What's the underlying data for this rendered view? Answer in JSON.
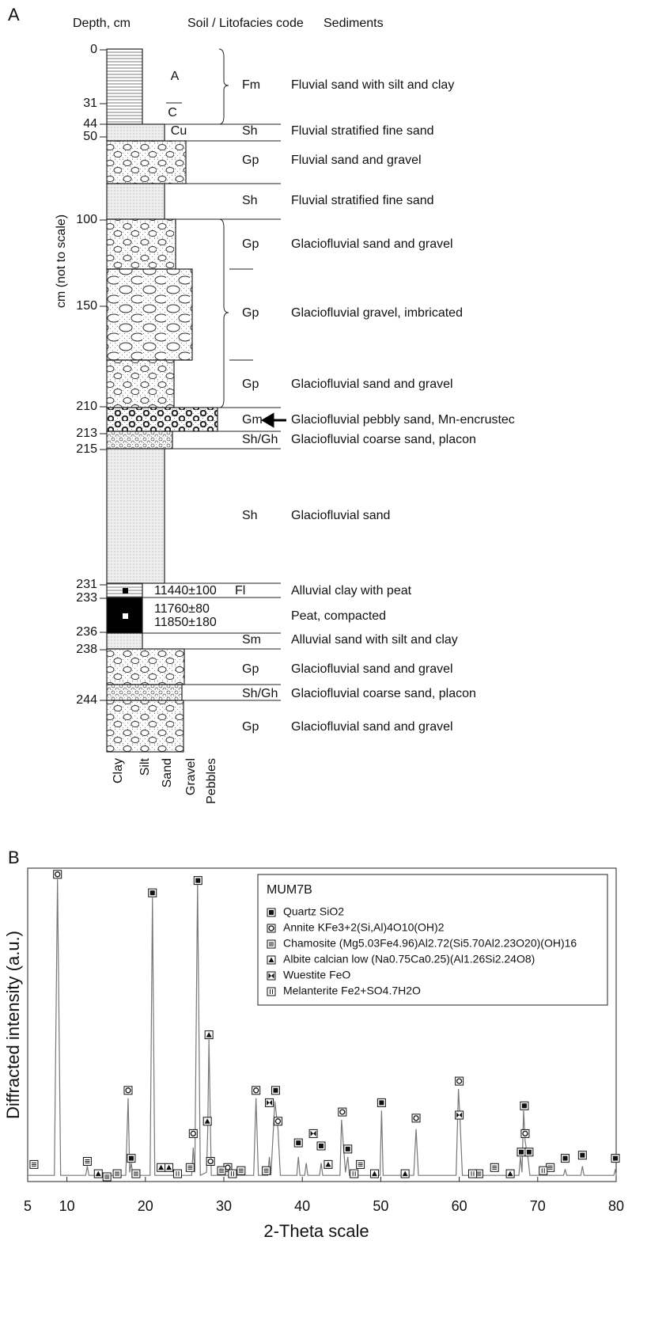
{
  "panel_a": {
    "label": "A",
    "headers": [
      "Depth, cm",
      "Soil / Litofacies code",
      "Sediments"
    ],
    "axis_label": "cm (not to scale)",
    "depths": [
      "0",
      "31",
      "44",
      "50",
      "100",
      "150",
      "210",
      "213",
      "215",
      "231",
      "233",
      "236",
      "238",
      "244"
    ],
    "horizons": [
      "A",
      "C",
      "Cu"
    ],
    "dates": [
      "11440±100",
      "11760±80",
      "11850±180"
    ],
    "units": [
      {
        "code": "Fm",
        "sediment": "Fluvial sand with silt and clay"
      },
      {
        "code": "Sh",
        "sediment": "Fluvial stratified fine sand"
      },
      {
        "code": "Gp",
        "sediment": "Fluvial sand and gravel"
      },
      {
        "code": "Sh",
        "sediment": "Fluvial stratified fine sand"
      },
      {
        "code": "Gp",
        "sediment": "Glaciofluvial sand and gravel"
      },
      {
        "code": "Gp",
        "sediment": "Glaciofluvial gravel, imbricated"
      },
      {
        "code": "Gp",
        "sediment": "Glaciofluvial sand and gravel"
      },
      {
        "code": "Gm",
        "sediment": "Glaciofluvial pebbly sand, Mn-encrustec"
      },
      {
        "code": "Sh/Gh",
        "sediment": "Glaciofluvial coarse sand, placon"
      },
      {
        "code": "Sh",
        "sediment": "Glaciofluvial sand"
      },
      {
        "code": "Fl",
        "sediment": "Alluvial clay with peat"
      },
      {
        "code": null,
        "sediment": "Peat, compacted"
      },
      {
        "code": "Sm",
        "sediment": "Alluvial sand with silt and clay"
      },
      {
        "code": "Gp",
        "sediment": "Glaciofluvial sand and gravel"
      },
      {
        "code": "Sh/Gh",
        "sediment": "Glaciofluvial coarse sand, placon"
      },
      {
        "code": "Gp",
        "sediment": "Glaciofluvial sand and gravel"
      }
    ],
    "grain_sizes": [
      "Clay",
      "Silt",
      "Sand",
      "Gravel",
      "Pebbles"
    ]
  },
  "panel_b_label": "B",
  "chart_data": {
    "type": "line",
    "x_label": "2-Theta scale",
    "y_label": "Diffracted intensity (a.u.)",
    "legend_title": "MUM7B",
    "xlim": [
      5,
      80
    ],
    "xticks": [
      5,
      10,
      20,
      30,
      40,
      50,
      60,
      70,
      80
    ],
    "ylim": [
      0,
      100
    ],
    "color": "#777777",
    "x": [
      5,
      8.4,
      8.8,
      9.2,
      12.4,
      12.6,
      12.8,
      17.5,
      17.8,
      18.0,
      18.2,
      18.4,
      20.6,
      20.9,
      21.2,
      25.9,
      26.1,
      26.3,
      26.65,
      27.0,
      27.8,
      27.95,
      28.1,
      28.4,
      33.8,
      34.1,
      34.4,
      35.6,
      35.8,
      36.0,
      36.5,
      36.9,
      37.2,
      39.3,
      39.5,
      39.7,
      40.3,
      40.5,
      40.7,
      42.2,
      42.4,
      42.6,
      44.8,
      45.0,
      45.5,
      45.8,
      46.0,
      49.9,
      50.1,
      50.3,
      54.2,
      54.5,
      54.8,
      59.6,
      59.9,
      60.1,
      60.4,
      67.6,
      67.8,
      68.0,
      68.2,
      68.4,
      68.8,
      69.0,
      73.3,
      73.5,
      73.7,
      75.5,
      75.7,
      75.9,
      79.7,
      79.9,
      80
    ],
    "values": [
      2,
      2,
      98,
      2,
      2,
      5,
      2,
      2,
      27,
      3,
      6,
      2,
      2,
      92,
      2,
      2,
      11,
      3,
      97,
      2,
      3,
      17,
      46,
      2,
      2,
      27,
      2,
      2,
      8,
      2,
      26,
      17,
      2,
      2,
      8,
      2,
      2,
      6,
      2,
      2,
      6,
      2,
      2,
      20,
      3,
      8,
      2,
      2,
      23,
      2,
      2,
      17,
      2,
      2,
      30,
      20,
      2,
      2,
      8,
      3,
      23,
      13,
      7,
      2,
      2,
      4,
      2,
      2,
      5,
      2,
      2,
      4,
      2
    ],
    "series": [
      {
        "name": "Quartz SiO2",
        "marker": "filled-square",
        "x": [
          18.2,
          20.9,
          26.7,
          36.6,
          39.5,
          42.4,
          45.8,
          50.1,
          67.9,
          68.3,
          68.9,
          73.5,
          75.7,
          79.9
        ],
        "values": [
          6,
          92,
          96,
          28,
          11,
          10,
          9,
          24,
          8,
          23,
          8,
          6,
          7,
          6
        ]
      },
      {
        "name": "Annite KFe3+2(Si,Al)4O10(OH)2",
        "marker": "circle-square",
        "x": [
          8.8,
          17.8,
          26.1,
          28.3,
          30.5,
          34.1,
          36.9,
          45.1,
          54.5,
          60.0,
          68.4
        ],
        "values": [
          98,
          28,
          14,
          5,
          3,
          28,
          18,
          21,
          19,
          31,
          14
        ]
      },
      {
        "name": "Chamosite (Mg5.03Fe4.96)Al2.72(Si5.70Al2.23O20)(OH)16",
        "marker": "lines-square",
        "x": [
          5.8,
          12.6,
          15.1,
          16.4,
          18.8,
          25.7,
          29.7,
          32.2,
          35.4,
          47.4,
          62.5,
          64.5,
          71.6
        ],
        "values": [
          4,
          5,
          0,
          1,
          1,
          3,
          2,
          2,
          2,
          4,
          1,
          3,
          3
        ]
      },
      {
        "name": "Albite calcian low (Na0.75Ca0.25)(Al1.26Si2.24O8)",
        "marker": "triangle-square",
        "x": [
          14.0,
          22.0,
          23.0,
          27.9,
          28.1,
          43.3,
          49.2,
          53.1,
          66.5
        ],
        "values": [
          1,
          3,
          3,
          18,
          46,
          4,
          1,
          1,
          1
        ]
      },
      {
        "name": "Wuestite FeO",
        "marker": "bowtie-square",
        "x": [
          35.8,
          41.4,
          60.0
        ],
        "values": [
          24,
          14,
          20
        ]
      },
      {
        "name": "Melanterite Fe2+SO4.7H2O",
        "marker": "bars-square",
        "x": [
          24.1,
          31.1,
          46.6,
          61.7,
          70.7
        ],
        "values": [
          1,
          1,
          1,
          1,
          2
        ]
      }
    ]
  }
}
